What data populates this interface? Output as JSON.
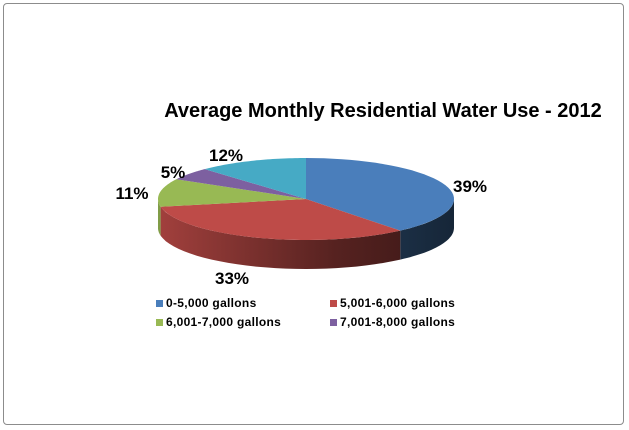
{
  "chart_data": {
    "type": "pie",
    "style": "3d",
    "title": "Average Monthly Residential Water Use - 2012",
    "slices": [
      {
        "label": "0-5,000 gallons",
        "value": 39,
        "data_label": "39%",
        "color": "#4a7ebb"
      },
      {
        "label": "5,001-6,000 gallons",
        "value": 33,
        "data_label": "33%",
        "color": "#be4b48"
      },
      {
        "label": "6,001-7,000 gallons",
        "value": 11,
        "data_label": "11%",
        "color": "#98b954"
      },
      {
        "label": "7,001-8,000 gallons",
        "value": 5,
        "data_label": "5%",
        "color": "#7d60a0"
      },
      {
        "label": "",
        "value": 12,
        "data_label": "12%",
        "color": "#46aac5"
      }
    ],
    "legend_position": "bottom",
    "legend_entries": [
      "0-5,000 gallons",
      "5,001-6,000 gallons",
      "6,001-7,000 gallons",
      "7,001-8,000 gallons"
    ]
  }
}
